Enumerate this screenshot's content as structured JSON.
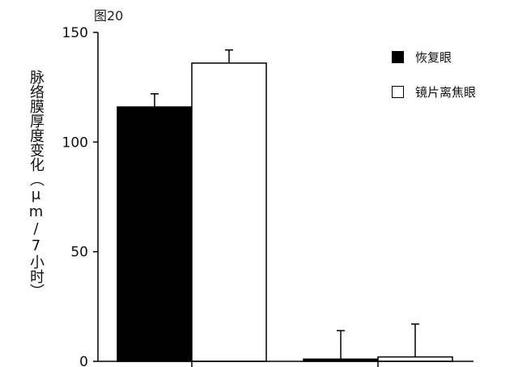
{
  "figure_label": "图20",
  "chart_data": {
    "type": "bar",
    "categories": [
      "",
      ""
    ],
    "series": [
      {
        "name": "恢复眼",
        "values": [
          116,
          1
        ],
        "errors": [
          6,
          13
        ],
        "color": "#000000"
      },
      {
        "name": "镜片离焦眼",
        "values": [
          136,
          2
        ],
        "errors": [
          6,
          15
        ],
        "color": "#ffffff"
      }
    ],
    "title": "",
    "xlabel": "",
    "ylabel": "脉络膜厚度变化（μm/7小时）",
    "ylim": [
      0,
      150
    ],
    "yticks": [
      0,
      50,
      100,
      150
    ],
    "grid": false,
    "legend_position": "top-right"
  }
}
